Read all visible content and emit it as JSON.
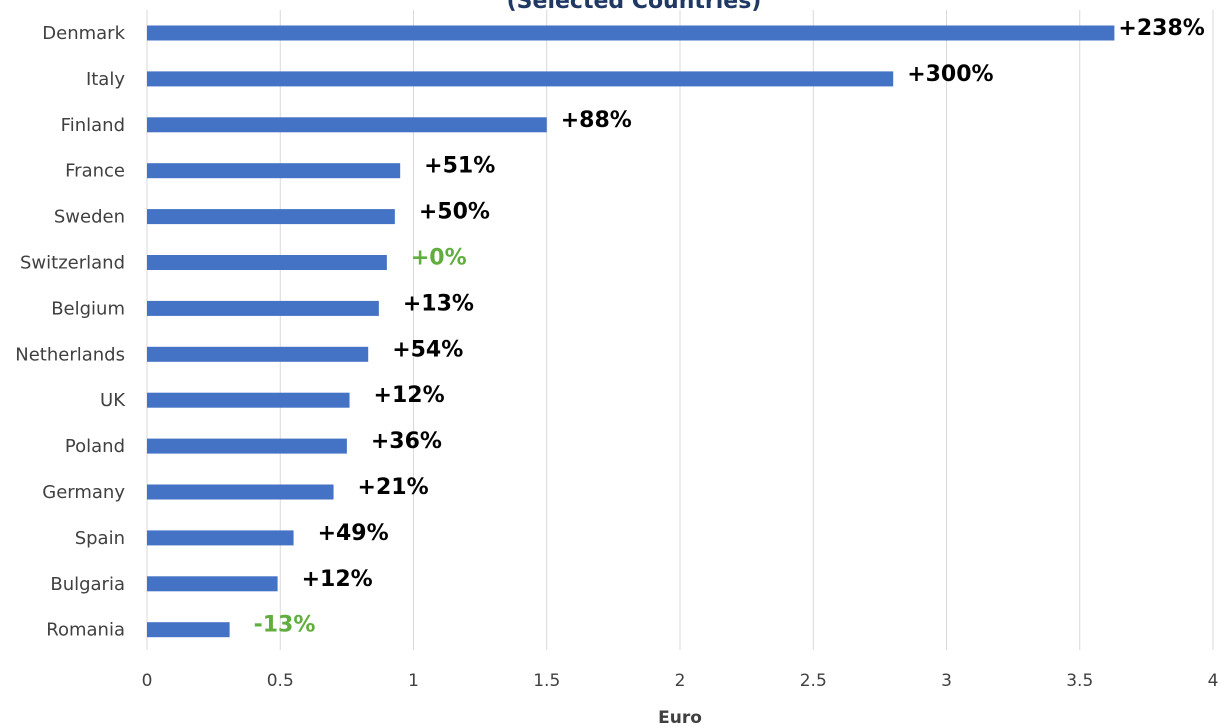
{
  "chart_data": {
    "type": "bar",
    "orientation": "horizontal",
    "title": "(Selected Countries)",
    "xlabel": "Euro",
    "ylabel": "",
    "xlim": [
      0,
      4
    ],
    "xticks": [
      "0",
      "0.5",
      "1",
      "1.5",
      "2",
      "2.5",
      "3",
      "3.5",
      "4"
    ],
    "grid": true,
    "categories": [
      "Denmark",
      "Italy",
      "Finland",
      "France",
      "Sweden",
      "Switzerland",
      "Belgium",
      "Netherlands",
      "UK",
      "Poland",
      "Germany",
      "Spain",
      "Bulgaria",
      "Romania"
    ],
    "values": [
      3.63,
      2.8,
      1.5,
      0.95,
      0.93,
      0.9,
      0.87,
      0.83,
      0.76,
      0.75,
      0.7,
      0.55,
      0.49,
      0.31
    ],
    "labels": [
      "+238%",
      "+300%",
      "+88%",
      "+51%",
      "+50%",
      "+0%",
      "+13%",
      "+54%",
      "+12%",
      "+36%",
      "+21%",
      "+49%",
      "+12%",
      "-13%"
    ],
    "bar_color": "#4472c4",
    "label_color": "#000000",
    "highlight_label_color": "#5fae3e",
    "highlighted_labels": [
      "+0%",
      "-13%"
    ],
    "title_color": "#1f3864"
  }
}
